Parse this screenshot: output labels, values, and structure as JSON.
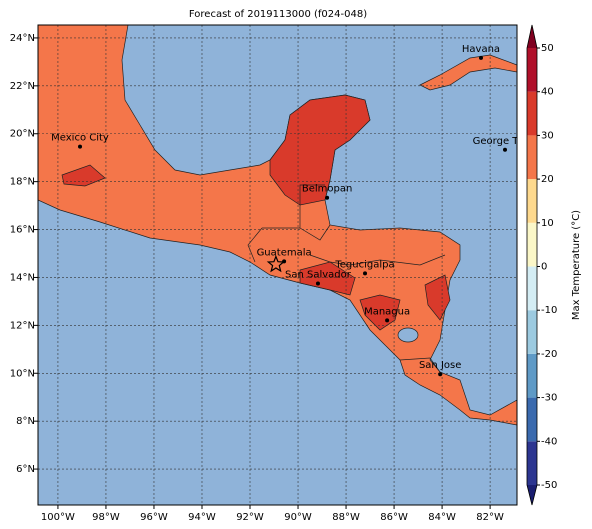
{
  "chart_data": {
    "type": "map",
    "title": "Forecast of 2019113000 (f024-048)",
    "xlim": [
      -100.83,
      -80.88
    ],
    "ylim": [
      4.5,
      24.54
    ],
    "xticks": [
      {
        "value": -100,
        "label": "100°W"
      },
      {
        "value": -98,
        "label": "98°W"
      },
      {
        "value": -96,
        "label": "96°W"
      },
      {
        "value": -94,
        "label": "94°W"
      },
      {
        "value": -92,
        "label": "92°W"
      },
      {
        "value": -90,
        "label": "90°W"
      },
      {
        "value": -88,
        "label": "88°W"
      },
      {
        "value": -86,
        "label": "86°W"
      },
      {
        "value": -84,
        "label": "84°W"
      },
      {
        "value": -82,
        "label": "82°W"
      }
    ],
    "yticks": [
      {
        "value": 6,
        "label": "6°N"
      },
      {
        "value": 8,
        "label": "8°N"
      },
      {
        "value": 10,
        "label": "10°N"
      },
      {
        "value": 12,
        "label": "12°N"
      },
      {
        "value": 14,
        "label": "14°N"
      },
      {
        "value": 16,
        "label": "16°N"
      },
      {
        "value": 18,
        "label": "18°N"
      },
      {
        "value": 20,
        "label": "20°N"
      },
      {
        "value": 22,
        "label": "22°N"
      },
      {
        "value": 24,
        "label": "24°N"
      }
    ],
    "grid": true,
    "cities": [
      {
        "name": "Mexico City",
        "lon": -99.08,
        "lat": 19.46
      },
      {
        "name": "Havana",
        "lon": -82.38,
        "lat": 23.17
      },
      {
        "name": "George Town",
        "lon": -81.38,
        "lat": 19.33
      },
      {
        "name": "Belmopan",
        "lon": -88.79,
        "lat": 17.33
      },
      {
        "name": "Guatemala",
        "lon": -90.58,
        "lat": 14.67
      },
      {
        "name": "San Salvador",
        "lon": -89.17,
        "lat": 13.75
      },
      {
        "name": "Tegucigalpa",
        "lon": -87.21,
        "lat": 14.17
      },
      {
        "name": "Managua",
        "lon": -86.29,
        "lat": 12.21
      },
      {
        "name": "San Jose",
        "lon": -84.08,
        "lat": 9.96
      }
    ],
    "star": {
      "lon": -90.92,
      "lat": 14.54
    },
    "colorbar": {
      "label": "Max Temperature (°C)",
      "ticks": [
        -50,
        -40,
        -30,
        -20,
        -10,
        0,
        10,
        20,
        30,
        40,
        50
      ],
      "colors": [
        "#2c3590",
        "#3a6aae",
        "#5f9ac6",
        "#9ccae0",
        "#d4edf4",
        "#fbf7c8",
        "#fed98e",
        "#f4764a",
        "#d93a2b",
        "#b0102a"
      ],
      "under": "#1a1e70",
      "over": "#7f0020"
    }
  }
}
